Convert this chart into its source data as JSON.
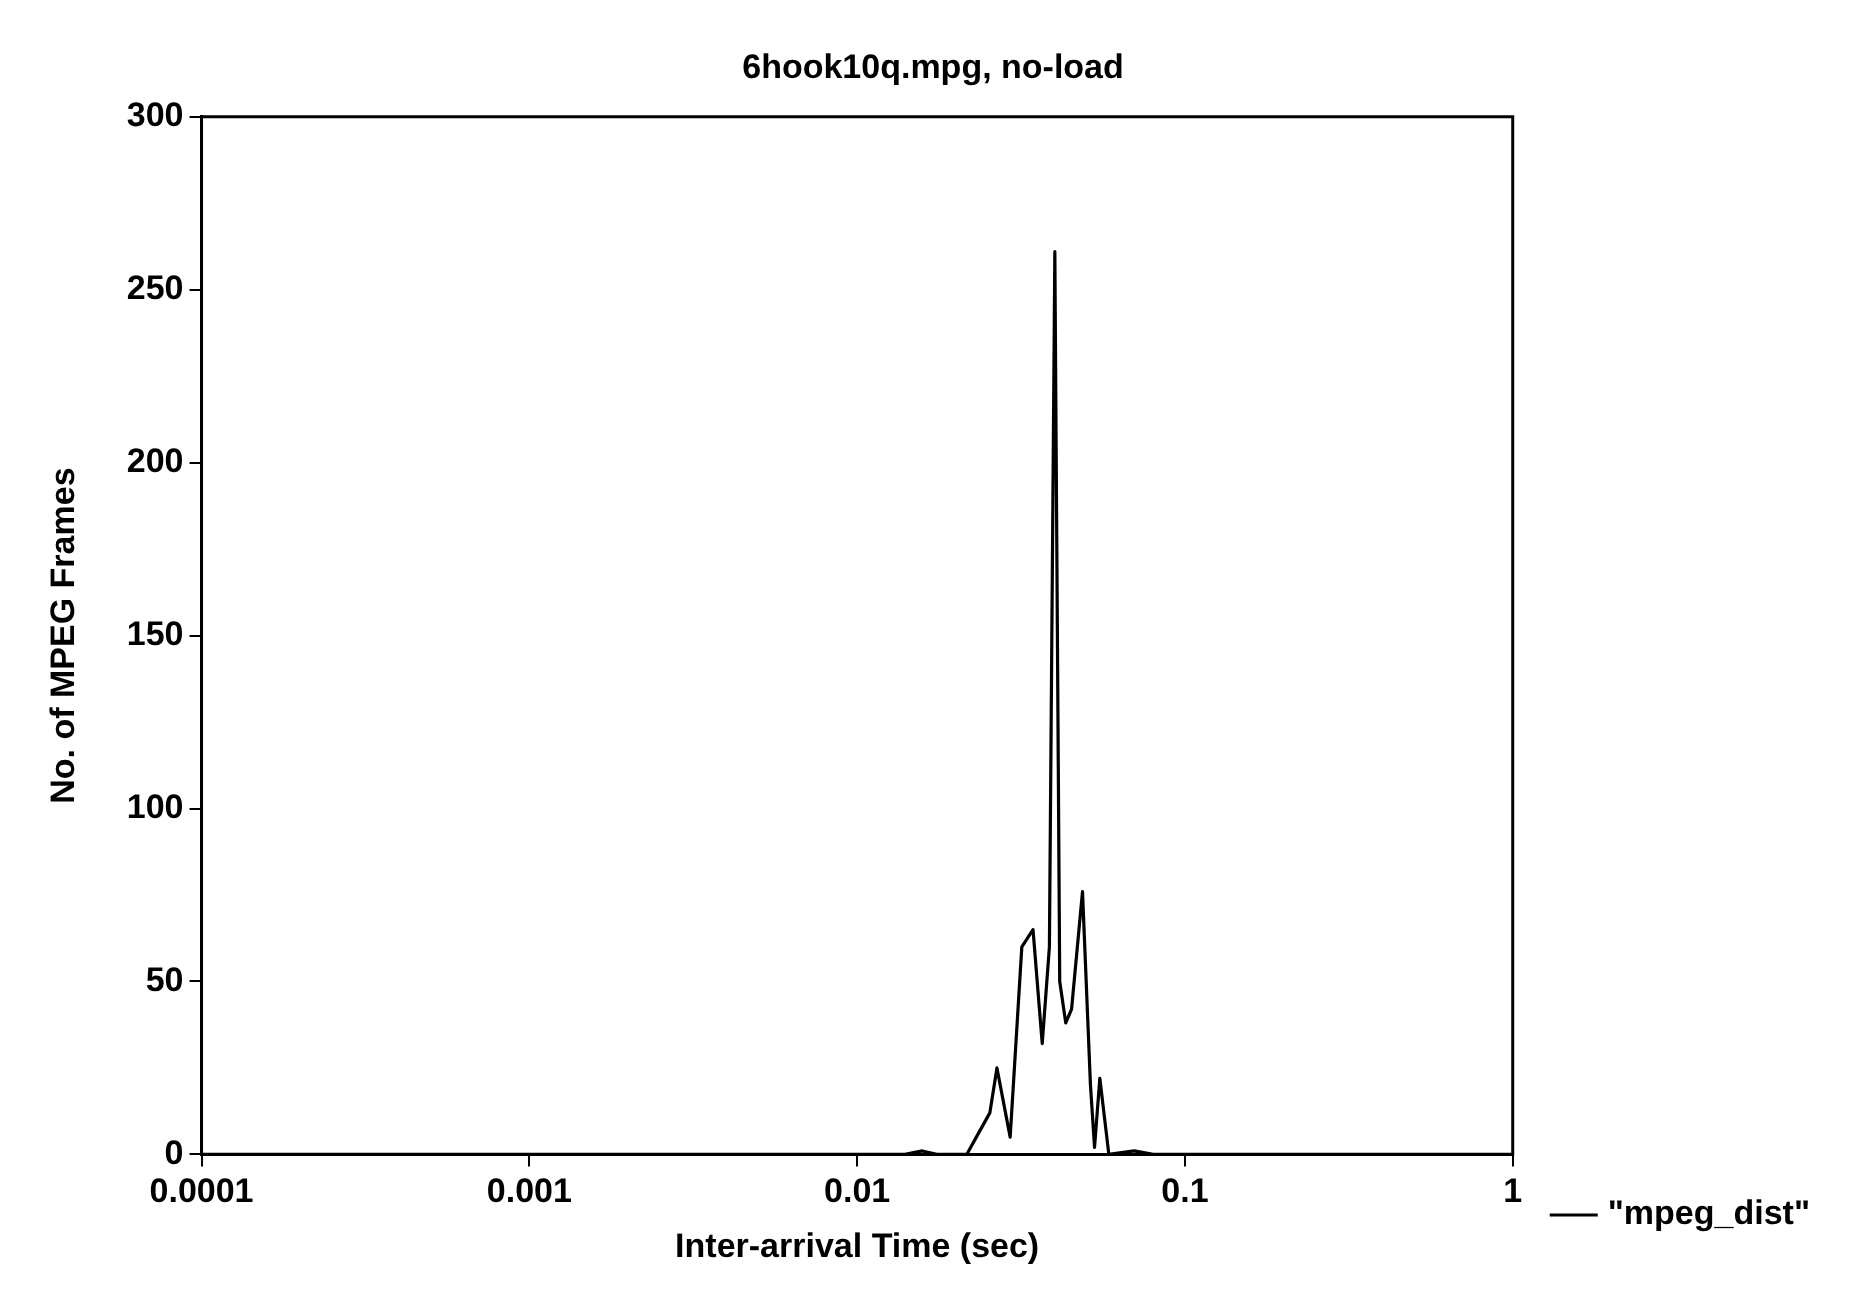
{
  "chart_data": {
    "type": "line",
    "title": "6hook10q.mpg, no-load",
    "xlabel": "Inter-arrival Time (sec)",
    "ylabel": "No. of MPEG Frames",
    "x": [
      0.0001,
      0.014,
      0.0158,
      0.0175,
      0.0216,
      0.0231,
      0.0254,
      0.0267,
      0.0293,
      0.0318,
      0.0344,
      0.0367,
      0.0386,
      0.0401,
      0.0415,
      0.0433,
      0.0451,
      0.0487,
      0.0515,
      0.053,
      0.055,
      0.0586,
      0.07,
      0.08,
      1
    ],
    "series": [
      {
        "name": "\"mpeg_dist\"",
        "color": "#000000",
        "values": [
          0,
          0,
          1,
          0,
          0,
          5,
          12,
          25,
          5,
          60,
          65,
          32,
          60,
          261,
          50,
          38,
          42,
          76,
          20,
          2,
          22,
          0,
          1,
          0,
          0
        ]
      }
    ],
    "log": "x",
    "xlim": [
      0.0001,
      1
    ],
    "xticks": [
      0.0001,
      0.001,
      0.01,
      0.1,
      1
    ],
    "ylim": [
      0,
      300
    ],
    "yticks": [
      0,
      50,
      100,
      150,
      200,
      250,
      300
    ],
    "grid": false,
    "legend": "bottom right",
    "marker": "none",
    "line_style": "solid"
  }
}
